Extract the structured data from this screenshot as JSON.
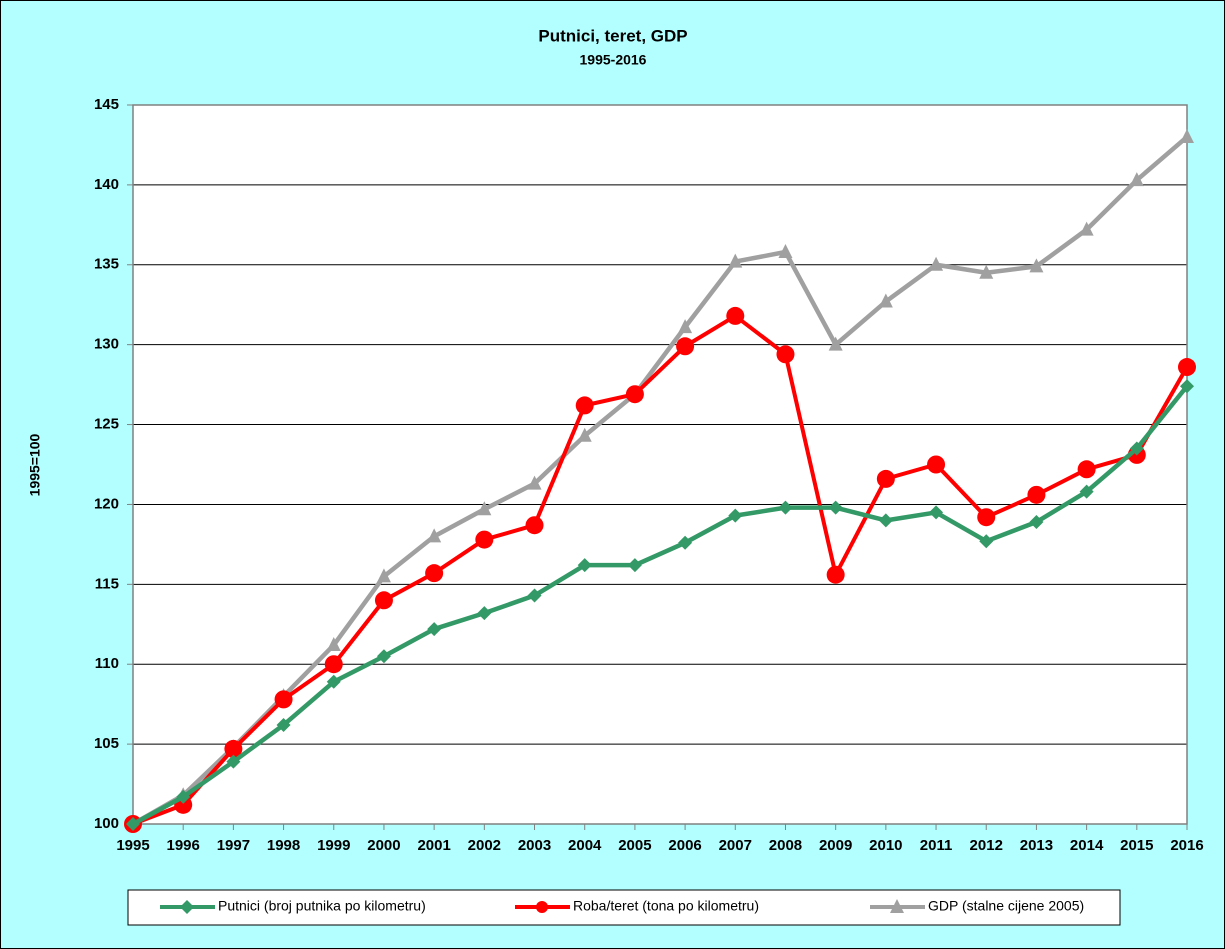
{
  "chart_data": {
    "type": "line",
    "title": "Putnici, teret, GDP",
    "subtitle": "1995-2016",
    "ylabel": "1995=100",
    "categories": [
      "1995",
      "1996",
      "1997",
      "1998",
      "1999",
      "2000",
      "2001",
      "2002",
      "2003",
      "2004",
      "2005",
      "2006",
      "2007",
      "2008",
      "2009",
      "2010",
      "2011",
      "2012",
      "2013",
      "2014",
      "2015",
      "2016"
    ],
    "series": [
      {
        "name": "Putnici (broj putnika po kilometru)",
        "color": "#339966",
        "marker": "diamond",
        "values": [
          100,
          101.7,
          103.9,
          106.2,
          108.9,
          110.5,
          112.2,
          113.2,
          114.3,
          116.2,
          116.2,
          117.6,
          119.3,
          119.8,
          119.8,
          119.0,
          119.5,
          117.7,
          118.9,
          120.8,
          123.5,
          127.4
        ]
      },
      {
        "name": "Roba/teret (tona po kilometru)",
        "color": "#ff0000",
        "marker": "circle",
        "values": [
          100,
          101.2,
          104.7,
          107.8,
          110.0,
          114.0,
          115.7,
          117.8,
          118.7,
          126.2,
          126.9,
          129.9,
          131.8,
          129.4,
          115.6,
          121.6,
          122.5,
          119.2,
          120.6,
          122.2,
          123.1,
          128.6
        ]
      },
      {
        "name": "GDP (stalne cijene 2005)",
        "color": "#a0a0a0",
        "marker": "triangle",
        "values": [
          100,
          101.8,
          104.8,
          108.0,
          111.2,
          115.5,
          118.0,
          119.7,
          121.3,
          124.3,
          126.9,
          131.1,
          135.2,
          135.8,
          130.0,
          132.7,
          135.0,
          134.5,
          134.9,
          137.2,
          140.3,
          143.0
        ]
      }
    ],
    "ylim": [
      100,
      145
    ],
    "yticks": [
      100,
      105,
      110,
      115,
      120,
      125,
      130,
      135,
      140,
      145
    ],
    "grid": true,
    "legend": "bottom"
  }
}
